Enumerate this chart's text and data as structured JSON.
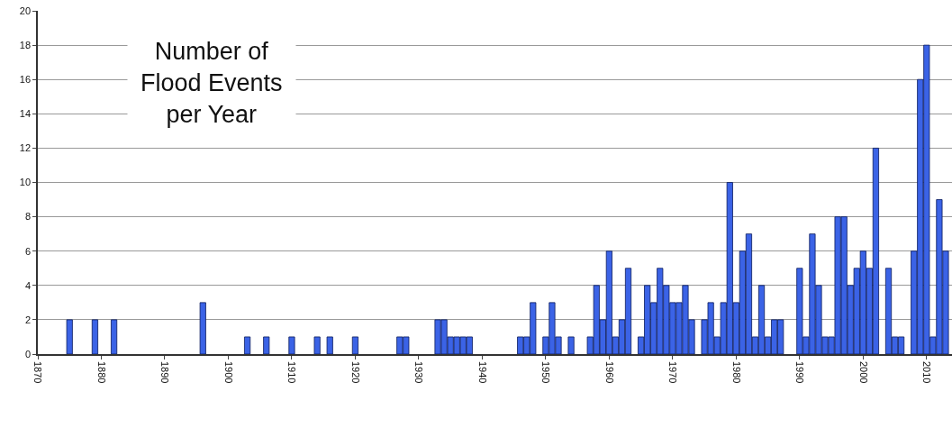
{
  "chart_data": {
    "type": "bar",
    "title": "Number of Flood Events per Year",
    "x": [
      1875,
      1879,
      1882,
      1896,
      1903,
      1906,
      1910,
      1914,
      1916,
      1920,
      1927,
      1928,
      1933,
      1934,
      1935,
      1936,
      1937,
      1938,
      1946,
      1947,
      1948,
      1950,
      1951,
      1952,
      1954,
      1957,
      1958,
      1959,
      1960,
      1961,
      1962,
      1963,
      1965,
      1966,
      1967,
      1968,
      1969,
      1970,
      1971,
      1972,
      1973,
      1975,
      1976,
      1977,
      1978,
      1979,
      1980,
      1981,
      1982,
      1983,
      1984,
      1985,
      1986,
      1987,
      1990,
      1991,
      1992,
      1993,
      1994,
      1995,
      1996,
      1997,
      1998,
      1999,
      2000,
      2001,
      2002,
      2004,
      2005,
      2006,
      2008,
      2009,
      2010,
      2011,
      2012,
      2013
    ],
    "values": [
      2,
      2,
      2,
      3,
      1,
      1,
      1,
      1,
      1,
      1,
      1,
      1,
      2,
      2,
      1,
      1,
      1,
      1,
      1,
      1,
      3,
      1,
      3,
      1,
      1,
      1,
      4,
      2,
      6,
      1,
      2,
      5,
      1,
      4,
      3,
      5,
      4,
      3,
      3,
      4,
      2,
      2,
      3,
      1,
      3,
      10,
      3,
      6,
      7,
      1,
      4,
      1,
      2,
      2,
      5,
      1,
      7,
      4,
      1,
      1,
      8,
      8,
      4,
      5,
      6,
      5,
      12,
      5,
      1,
      1,
      6,
      16,
      18,
      1,
      9,
      6
    ],
    "color": "#3b63e6",
    "xlim": [
      1870,
      2014
    ],
    "xticks": [
      1870,
      1880,
      1890,
      1900,
      1910,
      1920,
      1930,
      1940,
      1950,
      1960,
      1970,
      1980,
      1990,
      2000,
      2010
    ],
    "ylim": [
      0,
      20
    ],
    "yticks": [
      0,
      2,
      4,
      6,
      8,
      10,
      12,
      14,
      16,
      18,
      20
    ],
    "grid": "y"
  }
}
